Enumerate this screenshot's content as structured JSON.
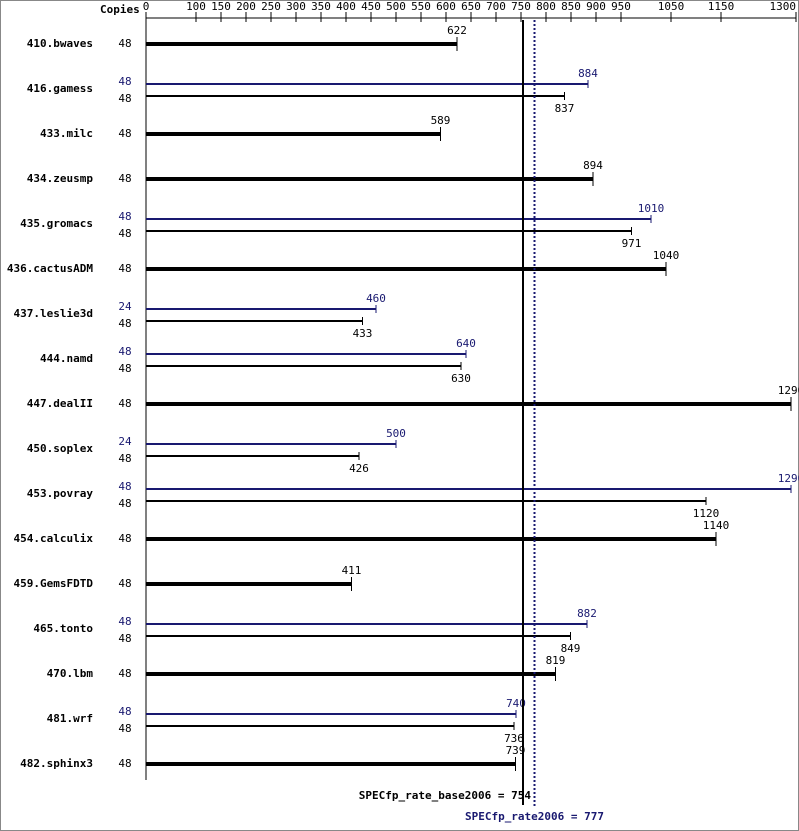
{
  "chart_data": {
    "type": "bar",
    "copies_label": "Copies",
    "categories": [
      "410.bwaves",
      "416.gamess",
      "433.milc",
      "434.zeusmp",
      "435.gromacs",
      "436.cactusADM",
      "437.leslie3d",
      "444.namd",
      "447.dealII",
      "450.soplex",
      "453.povray",
      "454.calculix",
      "459.GemsFDTD",
      "465.tonto",
      "470.lbm",
      "481.wrf",
      "482.sphinx3"
    ],
    "series": [
      {
        "color": "#000000",
        "copies": [
          48,
          48,
          48,
          48,
          48,
          48,
          48,
          48,
          48,
          48,
          48,
          48,
          48,
          48,
          48,
          48,
          48
        ],
        "values": [
          622,
          837,
          589,
          894,
          971,
          1040,
          433,
          630,
          1290,
          426,
          1120,
          1140,
          411,
          849,
          819,
          736,
          739
        ]
      },
      {
        "color": "#191970",
        "copies": [
          null,
          48,
          null,
          null,
          48,
          null,
          24,
          48,
          null,
          24,
          48,
          null,
          null,
          48,
          null,
          48,
          null
        ],
        "values": [
          null,
          884,
          null,
          null,
          1010,
          null,
          460,
          640,
          null,
          500,
          1290,
          null,
          null,
          882,
          null,
          740,
          null
        ]
      }
    ],
    "xlim": [
      0,
      1300
    ],
    "xticks": [
      0,
      100,
      150,
      200,
      250,
      300,
      350,
      400,
      450,
      500,
      550,
      600,
      650,
      700,
      750,
      800,
      850,
      900,
      950,
      1050,
      1150,
      1300
    ],
    "reference_lines": [
      {
        "label": "SPECfp_rate_base2006 =",
        "value": 754,
        "color": "#000000",
        "style": "solid"
      },
      {
        "label": "SPECfp_rate2006 =",
        "value": 777,
        "color": "#191970",
        "style": "dotted"
      }
    ]
  }
}
